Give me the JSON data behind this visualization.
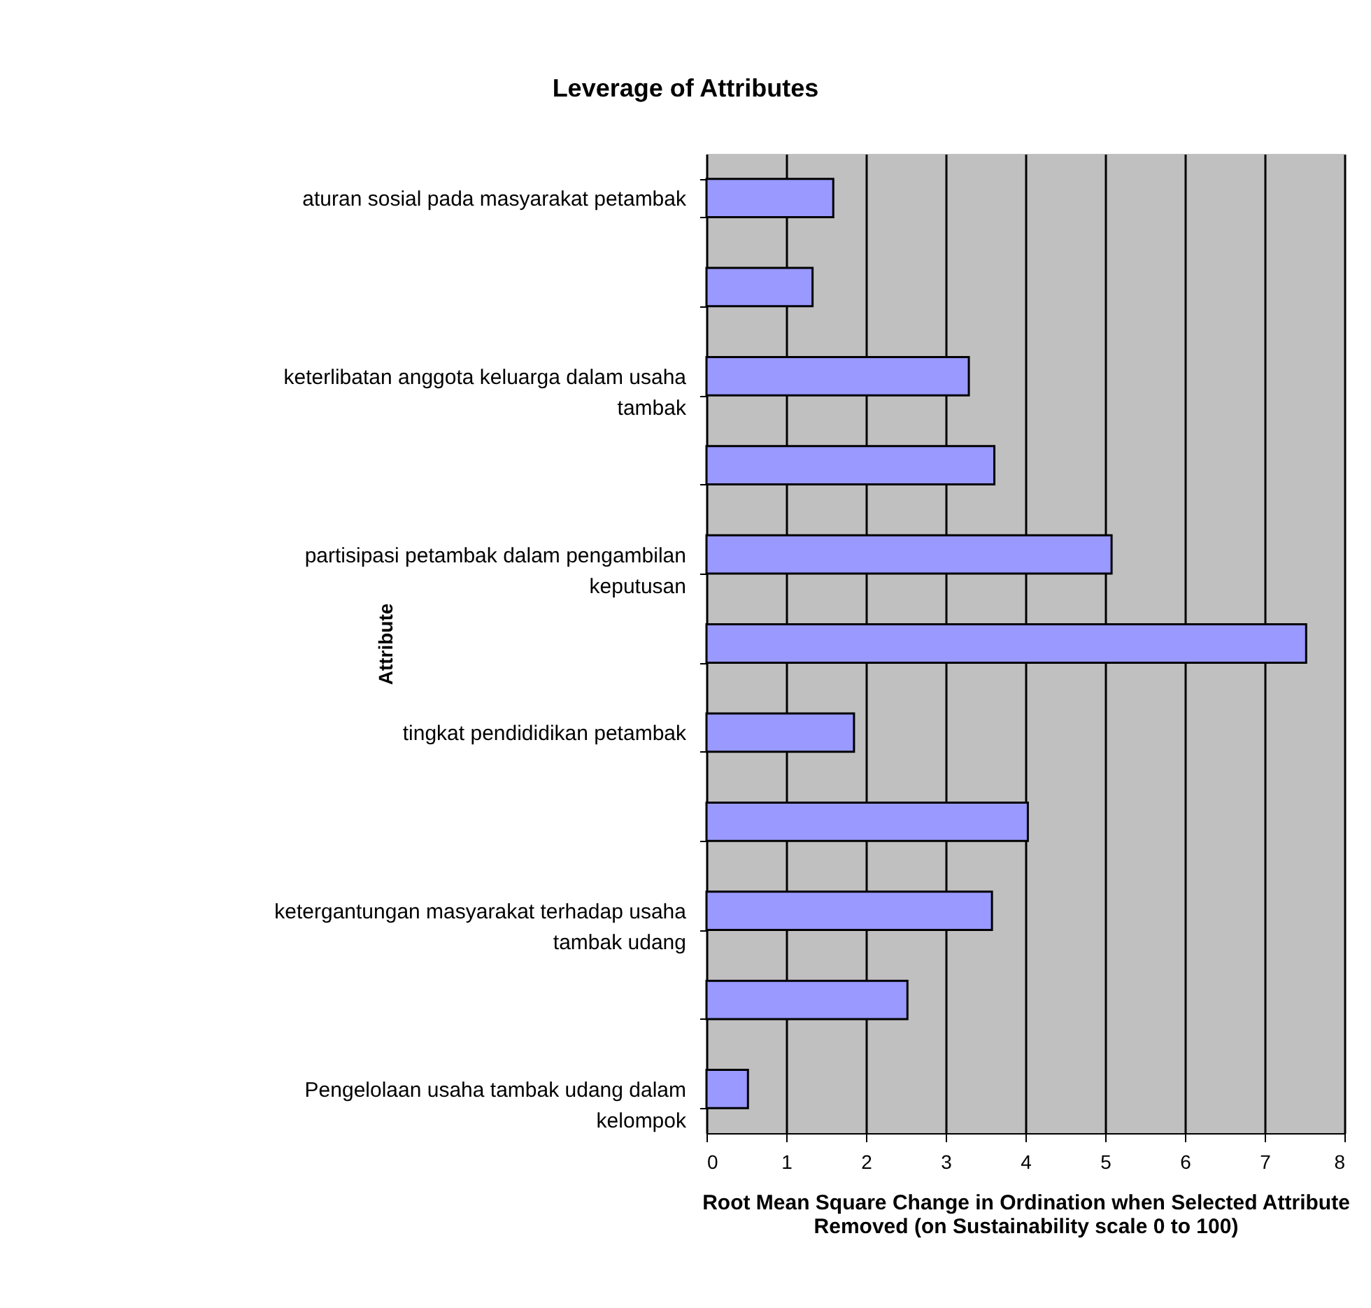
{
  "chart_data": {
    "type": "bar",
    "orientation": "horizontal",
    "title": "Leverage of Attributes",
    "xlabel": "Root Mean Square Change in Ordination when Selected Attribute Removed (on Sustainability scale 0 to 100)",
    "ylabel": "Attribute",
    "categories": [
      "aturan sosial pada masyarakat petambak",
      null,
      "keterlibatan anggota keluarga dalam usaha tambak",
      null,
      "partisipasi petambak dalam pengambilan keputusan",
      null,
      "tingkat pendididikan petambak",
      null,
      "ketergantungan masyarakat terhadap usaha tambak udang",
      null,
      "Pengelolaan usaha tambak udang dalam kelompok"
    ],
    "values": [
      1.59,
      1.33,
      3.29,
      3.61,
      5.08,
      7.52,
      1.85,
      4.03,
      3.58,
      2.52,
      0.52
    ],
    "color": "#9999ff",
    "xlim": [
      0,
      8
    ],
    "xticks": [
      0,
      1,
      2,
      3,
      4,
      5,
      6,
      7,
      8
    ],
    "grid": "x"
  }
}
